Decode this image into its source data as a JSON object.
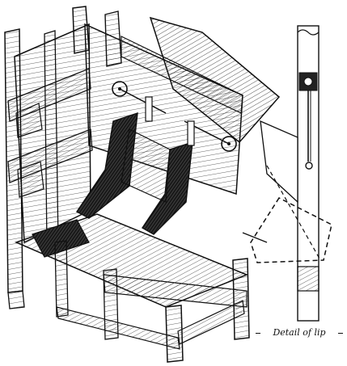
{
  "caption": "Detail of lip",
  "illustration": {
    "subject": "ore-bin-chutes-with-lip-gates",
    "style": "black-and-white line engraving"
  }
}
